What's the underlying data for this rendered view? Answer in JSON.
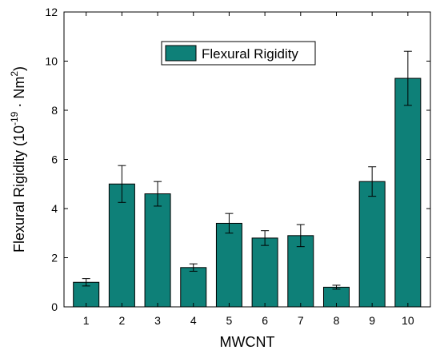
{
  "chart_data": {
    "type": "bar",
    "categories": [
      "1",
      "2",
      "3",
      "4",
      "5",
      "6",
      "7",
      "8",
      "9",
      "10"
    ],
    "series": [
      {
        "name": "Flexural Rigidity",
        "values": [
          1.0,
          5.0,
          4.6,
          1.6,
          3.4,
          2.8,
          2.9,
          0.8,
          5.1,
          9.3
        ],
        "errors": [
          0.15,
          0.75,
          0.5,
          0.15,
          0.4,
          0.3,
          0.45,
          0.08,
          0.6,
          1.1
        ],
        "color": "#0e8078"
      }
    ],
    "xlabel": "MWCNT",
    "ylabel_prefix": "Flexural Rigidity (10",
    "ylabel_exp": "-19",
    "ylabel_mid": " · Nm",
    "ylabel_sup2": "2",
    "ylabel_suffix": ")",
    "ylim": [
      0,
      12
    ],
    "yticks": [
      "0",
      "2",
      "4",
      "6",
      "8",
      "10",
      "12"
    ],
    "grid": false,
    "legend": {
      "position": "top-center",
      "label": "Flexural Rigidity"
    }
  }
}
